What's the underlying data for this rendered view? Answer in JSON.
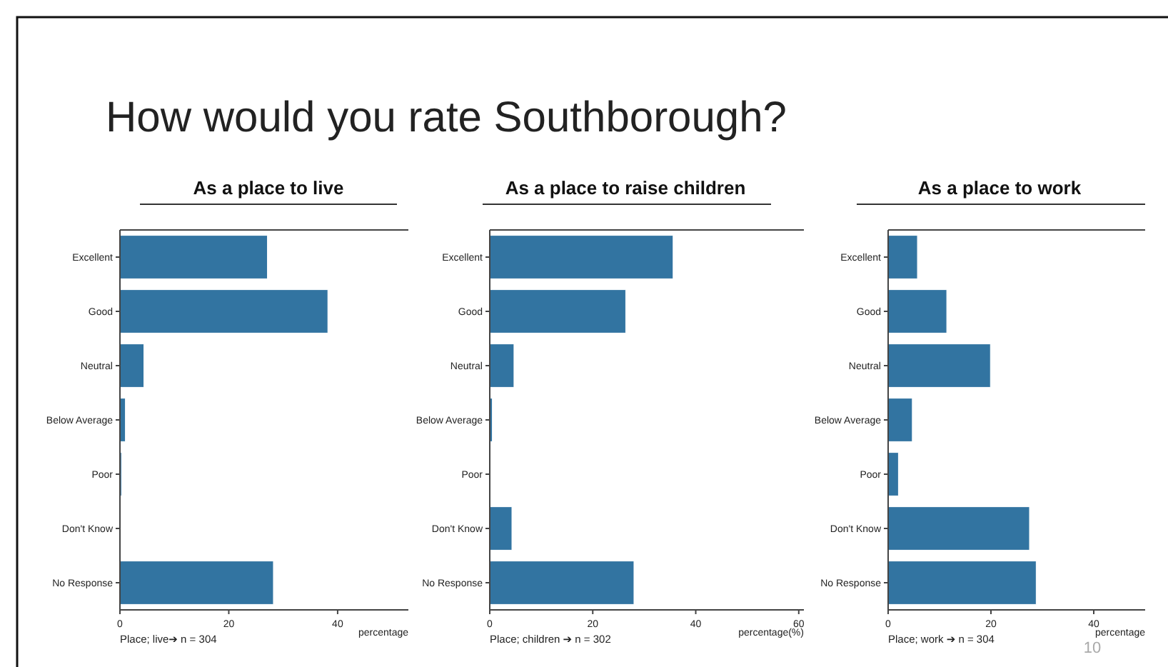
{
  "chart_data": [
    {
      "type": "other",
      "title": "How would you rate Southborough?",
      "annotations": [
        "10"
      ]
    },
    {
      "type": "bar",
      "orientation": "horizontal",
      "title": "As a place to live",
      "categories": [
        "Excellent",
        "Good",
        "Neutral",
        "Below Average",
        "Poor",
        "Don't Know",
        "No Response"
      ],
      "values": [
        27.1,
        38.2,
        4.4,
        1.0,
        0.3,
        0,
        28.2
      ],
      "color": "#3274a1",
      "xlim": [
        0,
        53
      ],
      "xticks": [
        0,
        20,
        40
      ],
      "xlabel": "percentage",
      "annotations": [
        "Place; live➔ n = 304"
      ]
    },
    {
      "type": "bar",
      "orientation": "horizontal",
      "title": "As a place to raise children",
      "categories": [
        "Excellent",
        "Good",
        "Neutral",
        "Below Average",
        "Poor",
        "Don't Know",
        "No Response"
      ],
      "values": [
        35.6,
        26.4,
        4.7,
        0.5,
        0,
        4.3,
        28.0
      ],
      "color": "#3274a1",
      "xlim": [
        0,
        61
      ],
      "xticks": [
        0,
        20,
        40,
        60
      ],
      "xlabel": "percentage(%)",
      "annotations": [
        "Place; children ➔ n = 302"
      ]
    },
    {
      "type": "bar",
      "orientation": "horizontal",
      "title": "As a place to work",
      "categories": [
        "Excellent",
        "Good",
        "Neutral",
        "Below Average",
        "Poor",
        "Don't Know",
        "No Response"
      ],
      "values": [
        5.7,
        11.4,
        19.9,
        4.7,
        2.0,
        27.5,
        28.8
      ],
      "color": "#3274a1",
      "xlim": [
        0,
        50
      ],
      "xticks": [
        0,
        20,
        40
      ],
      "xlabel": "percentage",
      "annotations": [
        "Place; work ➔ n = 304"
      ]
    }
  ]
}
